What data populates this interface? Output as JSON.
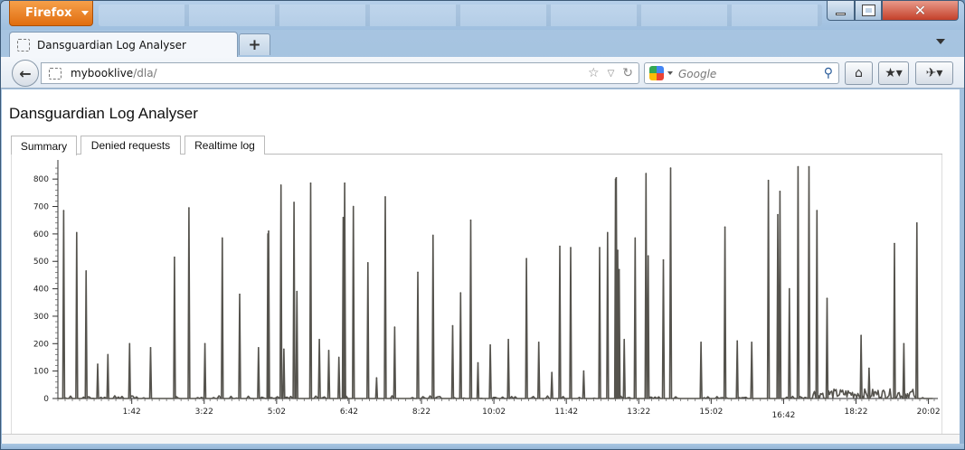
{
  "browser": {
    "app_button": "Firefox",
    "tab_title": "Dansguardian Log Analyser",
    "new_tab": "+",
    "url_host": "mybooklive",
    "url_path": "/dla/",
    "search_placeholder": "Google",
    "window_close": "✕"
  },
  "page": {
    "title": "Dansguardian Log Analyser",
    "tabs": [
      {
        "label": "Summary",
        "active": true
      },
      {
        "label": "Denied requests",
        "active": false
      },
      {
        "label": "Realtime log",
        "active": false
      }
    ]
  },
  "chart_data": {
    "type": "line",
    "line_color": "#55534d",
    "ylim": [
      0,
      850
    ],
    "yticks": [
      0,
      100,
      200,
      300,
      400,
      500,
      600,
      700,
      800
    ],
    "xticks": [
      "1:42",
      "3:22",
      "5:02",
      "6:42",
      "8:22",
      "10:02",
      "11:42",
      "13:22",
      "15:02",
      "16:42",
      "18:22",
      "20:02"
    ],
    "xlim_minutes": [
      0,
      1210
    ],
    "xtick_minutes": [
      102,
      202,
      302,
      402,
      502,
      602,
      702,
      802,
      902,
      1002,
      1102,
      1202
    ],
    "peaks": [
      [
        8,
        685
      ],
      [
        26,
        605
      ],
      [
        39,
        465
      ],
      [
        55,
        125
      ],
      [
        69,
        160
      ],
      [
        99,
        200
      ],
      [
        128,
        185
      ],
      [
        161,
        515
      ],
      [
        181,
        695
      ],
      [
        203,
        200
      ],
      [
        227,
        585
      ],
      [
        251,
        380
      ],
      [
        277,
        185
      ],
      [
        290,
        600
      ],
      [
        291,
        610
      ],
      [
        308,
        778
      ],
      [
        312,
        180
      ],
      [
        326,
        715
      ],
      [
        330,
        390
      ],
      [
        349,
        785
      ],
      [
        361,
        215
      ],
      [
        374,
        175
      ],
      [
        388,
        150
      ],
      [
        394,
        660
      ],
      [
        396,
        785
      ],
      [
        408,
        700
      ],
      [
        428,
        495
      ],
      [
        440,
        75
      ],
      [
        452,
        735
      ],
      [
        465,
        260
      ],
      [
        497,
        460
      ],
      [
        518,
        595
      ],
      [
        545,
        265
      ],
      [
        556,
        385
      ],
      [
        570,
        650
      ],
      [
        580,
        130
      ],
      [
        597,
        195
      ],
      [
        622,
        215
      ],
      [
        647,
        510
      ],
      [
        664,
        205
      ],
      [
        682,
        95
      ],
      [
        693,
        555
      ],
      [
        708,
        550
      ],
      [
        726,
        100
      ],
      [
        748,
        550
      ],
      [
        759,
        605
      ],
      [
        770,
        800
      ],
      [
        771,
        805
      ],
      [
        773,
        540
      ],
      [
        775,
        470
      ],
      [
        782,
        215
      ],
      [
        797,
        585
      ],
      [
        812,
        820
      ],
      [
        815,
        520
      ],
      [
        836,
        505
      ],
      [
        846,
        840
      ],
      [
        888,
        205
      ],
      [
        921,
        625
      ],
      [
        938,
        210
      ],
      [
        958,
        205
      ],
      [
        981,
        795
      ],
      [
        994,
        670
      ],
      [
        997,
        755
      ],
      [
        1010,
        400
      ],
      [
        1022,
        845
      ],
      [
        1037,
        845
      ],
      [
        1048,
        685
      ],
      [
        1062,
        365
      ],
      [
        1109,
        230
      ],
      [
        1120,
        110
      ],
      [
        1155,
        565
      ],
      [
        1168,
        200
      ],
      [
        1186,
        640
      ]
    ]
  }
}
